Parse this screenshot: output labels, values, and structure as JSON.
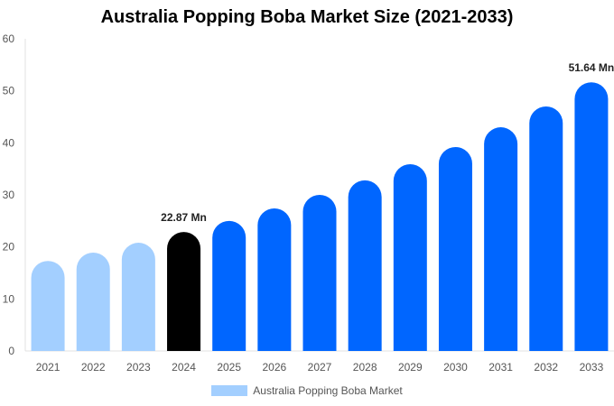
{
  "chart_data": {
    "type": "bar",
    "title": "Australia Popping Boba Market Size (2021-2033)",
    "xlabel": "",
    "ylabel": "",
    "ylim": [
      0,
      60
    ],
    "yticks": [
      0,
      10,
      20,
      30,
      40,
      50,
      60
    ],
    "categories": [
      "2021",
      "2022",
      "2023",
      "2024",
      "2025",
      "2026",
      "2027",
      "2028",
      "2029",
      "2030",
      "2031",
      "2032",
      "2033"
    ],
    "series": [
      {
        "name": "Australia Popping Boba Market",
        "values": [
          17.3,
          18.9,
          20.8,
          22.87,
          25.0,
          27.4,
          30.0,
          32.8,
          35.9,
          39.2,
          43.0,
          47.0,
          51.64
        ]
      }
    ],
    "bar_colors": {
      "historical": "#a3cfff",
      "current": "#000000",
      "forecast": "#0066ff"
    },
    "data_labels": [
      {
        "category": "2024",
        "text": "22.87 Mn"
      },
      {
        "category": "2033",
        "text": "51.64 Mn"
      }
    ],
    "legend": {
      "label": "Australia Popping Boba Market",
      "position": "bottom"
    },
    "grid": false
  }
}
